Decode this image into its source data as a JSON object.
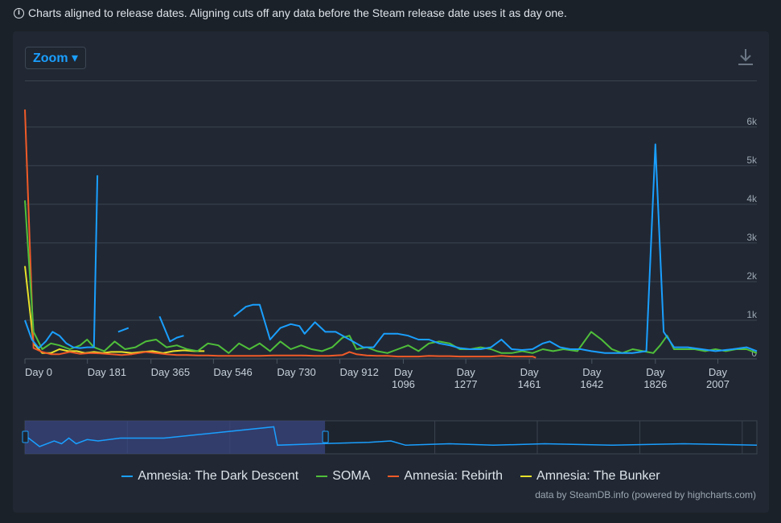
{
  "notice": {
    "icon": "info-icon",
    "text": "Charts aligned to release dates. Aligning cuts off any data before the Steam release date uses it as day one."
  },
  "toolbar": {
    "zoom_label": "Zoom ▾",
    "download_icon": "download-icon"
  },
  "colors": {
    "dark_descent": "#1a9fff",
    "soma": "#4fbf3a",
    "rebirth": "#f05a28",
    "bunker": "#e8e22a",
    "grid": "#3a4350",
    "navigator_mask": "#3a4580"
  },
  "credits": "data by SteamDB.info (powered by highcharts.com)",
  "chart_data": {
    "type": "line",
    "title": "",
    "xlabel": "",
    "ylabel": "",
    "x_tick_labels": [
      "Day 0",
      "Day 181",
      "Day 365",
      "Day 546",
      "Day 730",
      "Day 912",
      "Day\n1096",
      "Day\n1277",
      "Day\n1461",
      "Day\n1642",
      "Day\n1826",
      "Day\n2007"
    ],
    "x_tick_values": [
      0,
      181,
      365,
      546,
      730,
      912,
      1096,
      1277,
      1461,
      1642,
      1826,
      2007
    ],
    "xlim": [
      0,
      2120
    ],
    "y_tick_labels": [
      "0",
      "1k",
      "2k",
      "3k",
      "4k",
      "5k",
      "6k"
    ],
    "y_tick_values": [
      0,
      1000,
      2000,
      3000,
      4000,
      5000,
      6000
    ],
    "ylim": [
      0,
      6600
    ],
    "legend_position": "bottom-center",
    "grid": true,
    "series": [
      {
        "name": "Amnesia: The Dark Descent",
        "color_key": "dark_descent",
        "points": [
          [
            0,
            1000
          ],
          [
            20,
            500
          ],
          [
            40,
            280
          ],
          [
            60,
            450
          ],
          [
            80,
            700
          ],
          [
            100,
            600
          ],
          [
            120,
            400
          ],
          [
            140,
            300
          ],
          [
            160,
            280
          ],
          [
            180,
            300
          ],
          [
            200,
            300
          ],
          [
            210,
            4750
          ],
          null,
          [
            270,
            700
          ],
          [
            300,
            800
          ],
          null,
          [
            390,
            1100
          ],
          [
            420,
            450
          ],
          [
            440,
            550
          ],
          [
            460,
            600
          ],
          null,
          [
            605,
            1100
          ],
          [
            640,
            1350
          ],
          [
            660,
            1400
          ],
          [
            680,
            1400
          ],
          [
            710,
            500
          ],
          [
            740,
            800
          ],
          [
            770,
            900
          ],
          [
            795,
            850
          ],
          [
            810,
            650
          ],
          [
            840,
            950
          ],
          [
            870,
            700
          ],
          [
            900,
            700
          ],
          [
            940,
            500
          ],
          [
            980,
            300
          ],
          [
            1010,
            300
          ],
          [
            1040,
            650
          ],
          [
            1080,
            650
          ],
          [
            1110,
            600
          ],
          [
            1140,
            500
          ],
          [
            1170,
            500
          ],
          [
            1200,
            400
          ],
          [
            1230,
            350
          ],
          [
            1260,
            280
          ],
          [
            1290,
            250
          ],
          [
            1320,
            250
          ],
          [
            1350,
            300
          ],
          [
            1380,
            500
          ],
          [
            1410,
            250
          ],
          [
            1440,
            230
          ],
          [
            1470,
            250
          ],
          [
            1500,
            400
          ],
          [
            1520,
            450
          ],
          [
            1550,
            300
          ],
          [
            1580,
            250
          ],
          [
            1610,
            250
          ],
          [
            1640,
            200
          ],
          [
            1680,
            150
          ],
          [
            1720,
            150
          ],
          [
            1760,
            150
          ],
          [
            1800,
            200
          ],
          [
            1826,
            5550
          ],
          [
            1850,
            700
          ],
          [
            1880,
            300
          ],
          [
            1920,
            300
          ],
          [
            1960,
            250
          ],
          [
            2000,
            200
          ],
          [
            2050,
            250
          ],
          [
            2090,
            300
          ],
          [
            2120,
            200
          ]
        ]
      },
      {
        "name": "SOMA",
        "color_key": "soma",
        "points": [
          [
            0,
            4100
          ],
          [
            25,
            700
          ],
          [
            50,
            250
          ],
          [
            75,
            400
          ],
          [
            100,
            350
          ],
          [
            130,
            250
          ],
          [
            160,
            350
          ],
          [
            180,
            500
          ],
          [
            200,
            300
          ],
          [
            230,
            200
          ],
          [
            260,
            450
          ],
          [
            290,
            250
          ],
          [
            320,
            300
          ],
          [
            350,
            450
          ],
          [
            380,
            500
          ],
          [
            410,
            300
          ],
          [
            440,
            350
          ],
          [
            470,
            250
          ],
          [
            500,
            200
          ],
          [
            530,
            400
          ],
          [
            560,
            350
          ],
          [
            590,
            150
          ],
          [
            620,
            400
          ],
          [
            650,
            250
          ],
          [
            680,
            400
          ],
          [
            710,
            200
          ],
          [
            740,
            450
          ],
          [
            770,
            250
          ],
          [
            800,
            350
          ],
          [
            830,
            250
          ],
          [
            860,
            200
          ],
          [
            890,
            300
          ],
          [
            920,
            550
          ],
          [
            940,
            600
          ],
          [
            960,
            250
          ],
          [
            990,
            300
          ],
          [
            1020,
            200
          ],
          [
            1050,
            150
          ],
          [
            1080,
            250
          ],
          [
            1110,
            350
          ],
          [
            1140,
            200
          ],
          [
            1170,
            400
          ],
          [
            1200,
            450
          ],
          [
            1230,
            400
          ],
          [
            1260,
            250
          ],
          [
            1290,
            250
          ],
          [
            1320,
            300
          ],
          [
            1350,
            250
          ],
          [
            1380,
            150
          ],
          [
            1410,
            150
          ],
          [
            1440,
            200
          ],
          [
            1470,
            150
          ],
          [
            1500,
            250
          ],
          [
            1530,
            200
          ],
          [
            1560,
            250
          ],
          [
            1600,
            200
          ],
          [
            1640,
            700
          ],
          [
            1670,
            500
          ],
          [
            1700,
            250
          ],
          [
            1730,
            150
          ],
          [
            1760,
            250
          ],
          [
            1790,
            200
          ],
          [
            1820,
            150
          ],
          [
            1840,
            350
          ],
          [
            1860,
            600
          ],
          [
            1880,
            250
          ],
          [
            1910,
            250
          ],
          [
            1940,
            250
          ],
          [
            1970,
            200
          ],
          [
            2000,
            250
          ],
          [
            2030,
            200
          ],
          [
            2060,
            250
          ],
          [
            2090,
            250
          ],
          [
            2120,
            150
          ]
        ]
      },
      {
        "name": "Amnesia: Rebirth",
        "color_key": "rebirth",
        "points": [
          [
            0,
            6450
          ],
          [
            25,
            280
          ],
          [
            50,
            180
          ],
          [
            75,
            120
          ],
          [
            100,
            120
          ],
          [
            130,
            180
          ],
          [
            160,
            130
          ],
          [
            190,
            150
          ],
          [
            220,
            140
          ],
          [
            250,
            120
          ],
          [
            280,
            100
          ],
          [
            310,
            120
          ],
          [
            350,
            180
          ],
          [
            380,
            150
          ],
          [
            410,
            120
          ],
          [
            440,
            100
          ],
          [
            470,
            100
          ],
          [
            500,
            90
          ],
          [
            530,
            90
          ],
          [
            560,
            80
          ],
          [
            600,
            80
          ],
          [
            640,
            80
          ],
          [
            680,
            80
          ],
          [
            720,
            90
          ],
          [
            760,
            90
          ],
          [
            800,
            90
          ],
          [
            840,
            80
          ],
          [
            880,
            80
          ],
          [
            920,
            100
          ],
          [
            940,
            180
          ],
          [
            960,
            120
          ],
          [
            990,
            90
          ],
          [
            1020,
            80
          ],
          [
            1050,
            80
          ],
          [
            1080,
            60
          ],
          [
            1110,
            60
          ],
          [
            1140,
            60
          ],
          [
            1170,
            80
          ],
          [
            1200,
            70
          ],
          [
            1230,
            70
          ],
          [
            1260,
            60
          ],
          [
            1290,
            60
          ],
          [
            1320,
            60
          ],
          [
            1350,
            60
          ],
          [
            1380,
            80
          ],
          [
            1410,
            60
          ],
          [
            1440,
            60
          ],
          [
            1470,
            60
          ],
          [
            1480,
            30
          ]
        ]
      },
      {
        "name": "Amnesia: The Bunker",
        "color_key": "bunker",
        "points": [
          [
            0,
            2400
          ],
          [
            25,
            400
          ],
          [
            50,
            150
          ],
          [
            75,
            150
          ],
          [
            100,
            250
          ],
          [
            125,
            200
          ],
          [
            150,
            200
          ],
          [
            175,
            150
          ],
          [
            200,
            180
          ],
          [
            225,
            150
          ],
          [
            250,
            180
          ],
          [
            280,
            180
          ],
          [
            310,
            150
          ],
          [
            340,
            180
          ],
          [
            370,
            200
          ],
          [
            400,
            150
          ],
          [
            430,
            200
          ],
          [
            460,
            220
          ],
          [
            490,
            200
          ],
          [
            520,
            200
          ]
        ]
      }
    ]
  },
  "navigator": {
    "selection_range_fraction": [
      0,
      0.41
    ],
    "series": [
      [
        0,
        0.6
      ],
      [
        0.02,
        0.2
      ],
      [
        0.04,
        0.4
      ],
      [
        0.05,
        0.3
      ],
      [
        0.06,
        0.5
      ],
      [
        0.07,
        0.3
      ],
      [
        0.085,
        0.45
      ],
      [
        0.1,
        0.4
      ],
      [
        0.13,
        0.5
      ],
      [
        0.19,
        0.5
      ],
      [
        0.34,
        0.9
      ],
      [
        0.345,
        0.25
      ],
      [
        0.4,
        0.3
      ],
      [
        0.47,
        0.35
      ],
      [
        0.5,
        0.4
      ],
      [
        0.52,
        0.25
      ],
      [
        0.58,
        0.3
      ],
      [
        0.64,
        0.25
      ],
      [
        0.71,
        0.3
      ],
      [
        0.8,
        0.25
      ],
      [
        0.9,
        0.3
      ],
      [
        1,
        0.25
      ]
    ]
  }
}
